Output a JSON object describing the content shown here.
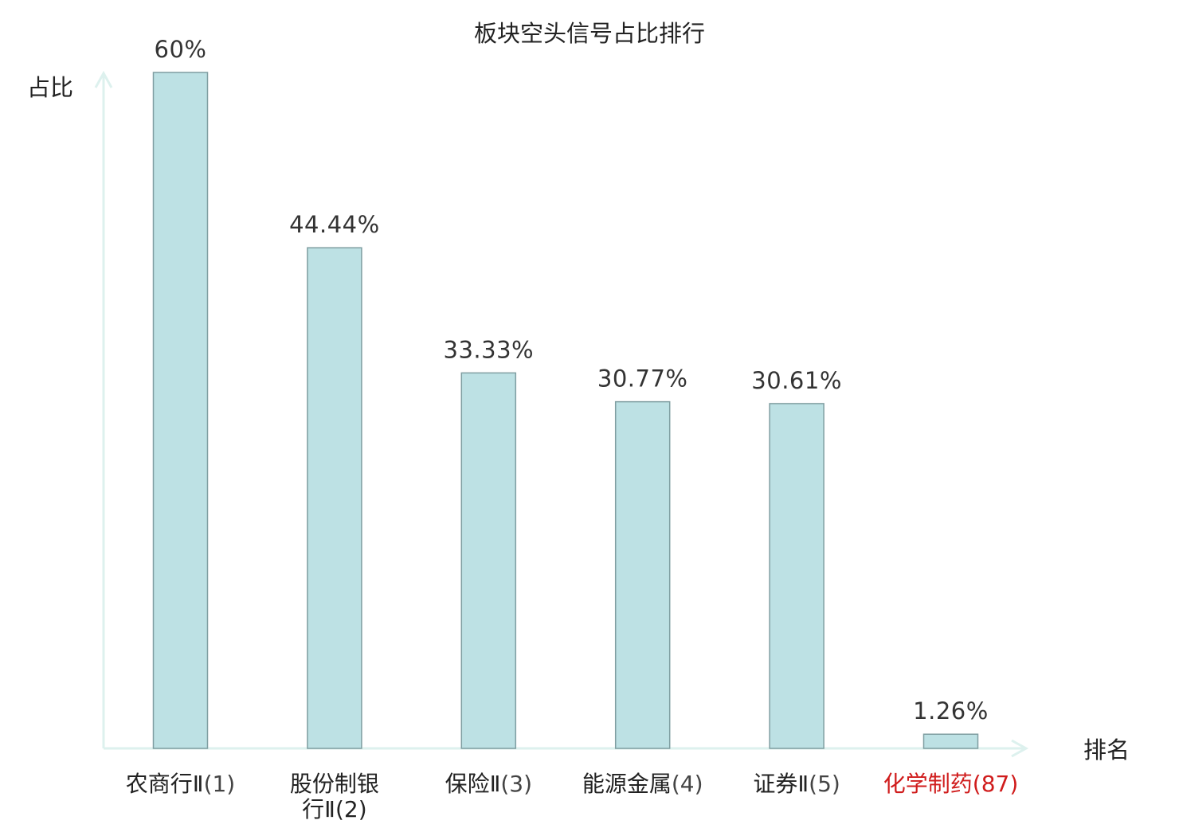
{
  "chart_data": {
    "type": "bar",
    "title": "板块空头信号占比排行",
    "ylabel": "占比",
    "xlabel": "排名",
    "ylim": [
      0,
      60
    ],
    "grid": false,
    "categories": [
      {
        "line1": "农商行Ⅱ",
        "suffix": "(1)",
        "line2": "",
        "highlight": false
      },
      {
        "line1": "股份制银",
        "suffix": "",
        "line2": "行Ⅱ(2)",
        "highlight": false
      },
      {
        "line1": "保险Ⅱ",
        "suffix": "(3)",
        "line2": "",
        "highlight": false
      },
      {
        "line1": "能源金属",
        "suffix": "(4)",
        "line2": "",
        "highlight": false
      },
      {
        "line1": "证券Ⅱ",
        "suffix": "(5)",
        "line2": "",
        "highlight": false
      },
      {
        "line1": "化学制药",
        "suffix": "(87)",
        "line2": "",
        "highlight": true
      }
    ],
    "values": [
      60,
      44.44,
      33.33,
      30.77,
      30.61,
      1.26
    ],
    "value_labels": [
      "60%",
      "44.44%",
      "33.33%",
      "30.77%",
      "30.61%",
      "1.26%"
    ],
    "colors": {
      "bar_fill": "#bde1e4",
      "bar_stroke": "#7f9ea1",
      "axis": "#ddf1ee",
      "highlight_label": "#d01c1c"
    }
  }
}
